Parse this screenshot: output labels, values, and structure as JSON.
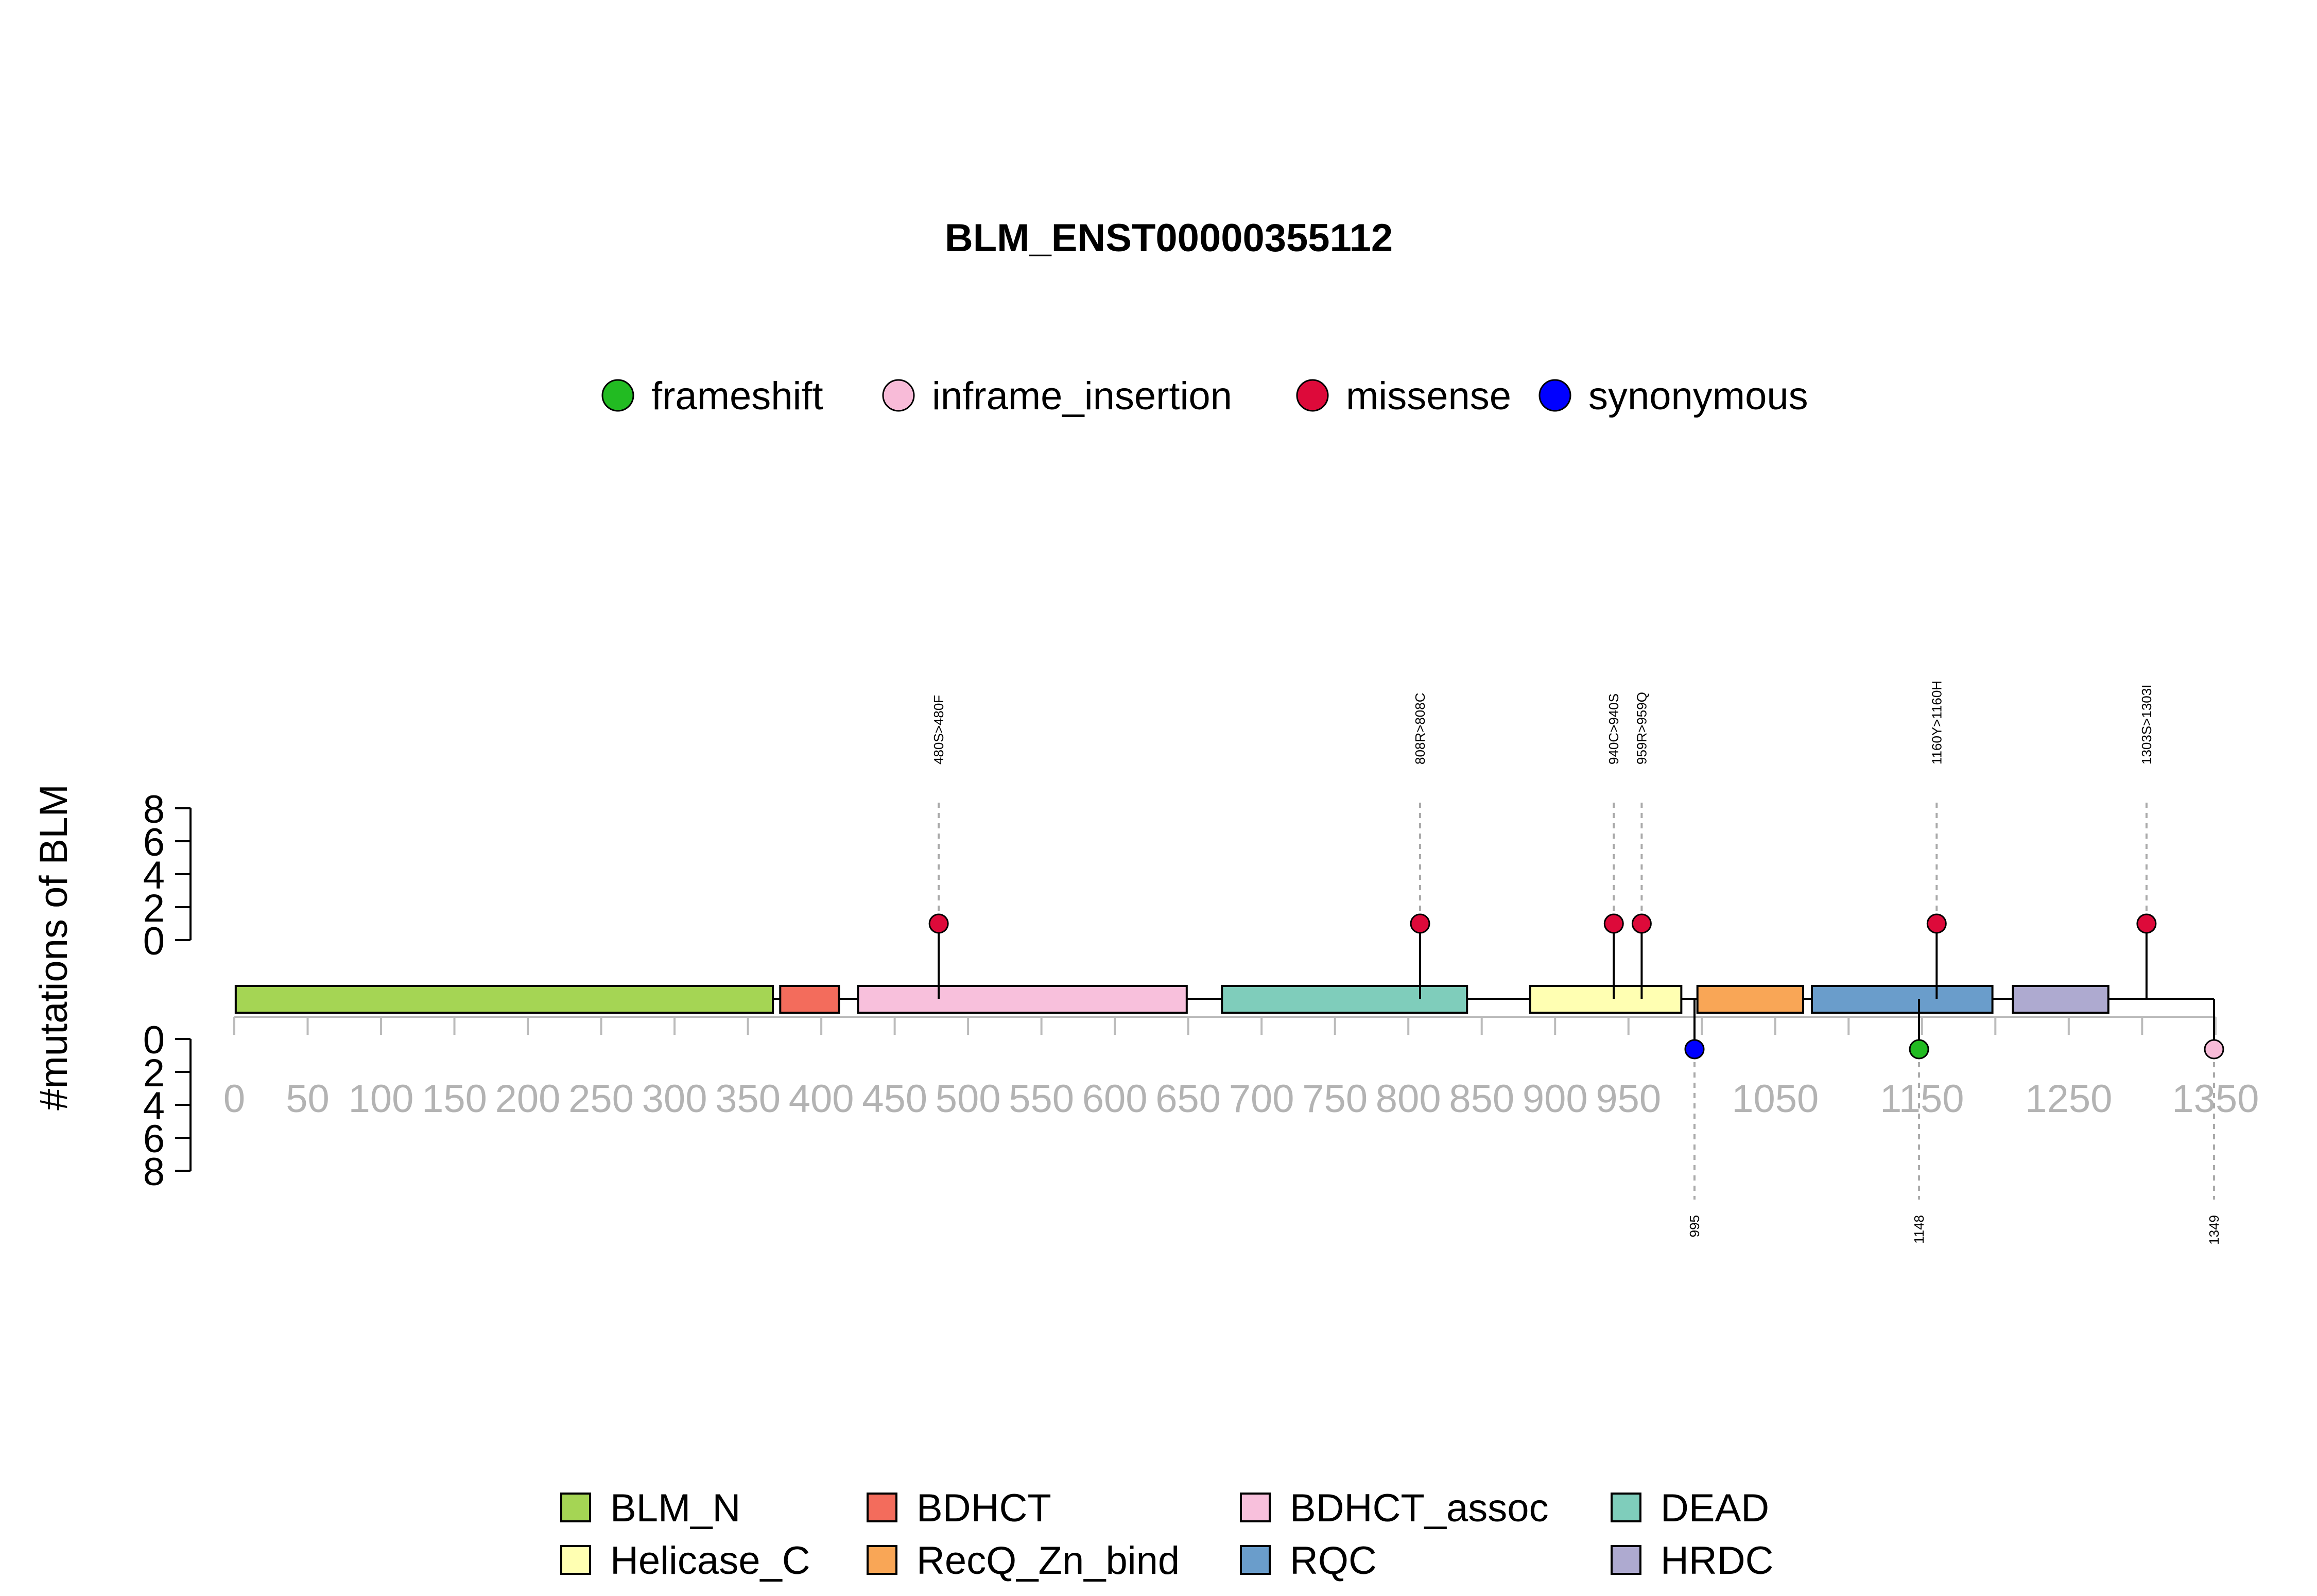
{
  "chart_data": {
    "type": "lollipop",
    "title": "BLM_ENST00000355112",
    "ylabel": "#mutations of BLM",
    "protein_length": 1349,
    "xlim": [
      0,
      1349
    ],
    "x_ticks": [
      "0",
      "50",
      "100",
      "150",
      "200",
      "250",
      "300",
      "350",
      "400",
      "450",
      "500",
      "550",
      "600",
      "650",
      "700",
      "750",
      "800",
      "850",
      "900",
      "950",
      "1050",
      "1150",
      "1250",
      "1350"
    ],
    "y_ticks": [
      "0",
      "2",
      "4",
      "6",
      "8"
    ],
    "ylim": [
      0,
      8
    ],
    "mutation_types": [
      {
        "name": "frameshift",
        "color": "#22bb22"
      },
      {
        "name": "inframe_insertion",
        "color": "#f8bbd8"
      },
      {
        "name": "missense",
        "color": "#dd0a3a"
      },
      {
        "name": "synonymous",
        "color": "#0000ff"
      }
    ],
    "domains": [
      {
        "name": "BLM_N",
        "start": 1,
        "end": 367,
        "color": "#a5d554"
      },
      {
        "name": "BDHCT",
        "start": 372,
        "end": 412,
        "color": "#f36c5c"
      },
      {
        "name": "BDHCT_assoc",
        "start": 425,
        "end": 649,
        "color": "#f8c0dc"
      },
      {
        "name": "DEAD",
        "start": 673,
        "end": 840,
        "color": "#7fcdbb"
      },
      {
        "name": "Helicase_C",
        "start": 883,
        "end": 986,
        "color": "#ffffb2"
      },
      {
        "name": "RecQ_Zn_bind",
        "start": 997,
        "end": 1069,
        "color": "#f9a656"
      },
      {
        "name": "RQC",
        "start": 1075,
        "end": 1198,
        "color": "#6a9dcb"
      },
      {
        "name": "HRDC",
        "start": 1212,
        "end": 1277,
        "color": "#aeaad0"
      }
    ],
    "mutations_top": [
      {
        "label": "480S>480F",
        "position": 480,
        "count": 1,
        "type": "missense"
      },
      {
        "label": "808R>808C",
        "position": 808,
        "count": 1,
        "type": "missense"
      },
      {
        "label": "940C>940S",
        "position": 940,
        "count": 1,
        "type": "missense"
      },
      {
        "label": "959R>959Q",
        "position": 959,
        "count": 1,
        "type": "missense"
      },
      {
        "label": "1160Y>1160H",
        "position": 1160,
        "count": 1,
        "type": "missense"
      },
      {
        "label": "1303S>1303I",
        "position": 1303,
        "count": 1,
        "type": "missense"
      }
    ],
    "mutations_bottom": [
      {
        "label": "995",
        "position": 995,
        "count": 1,
        "type": "synonymous"
      },
      {
        "label": "1148",
        "position": 1148,
        "count": 1,
        "type": "frameshift"
      },
      {
        "label": "1349",
        "position": 1349,
        "count": 1,
        "type": "inframe_insertion"
      }
    ],
    "legend_top_placement": "top-center",
    "legend_bottom_placement": "bottom-center"
  }
}
